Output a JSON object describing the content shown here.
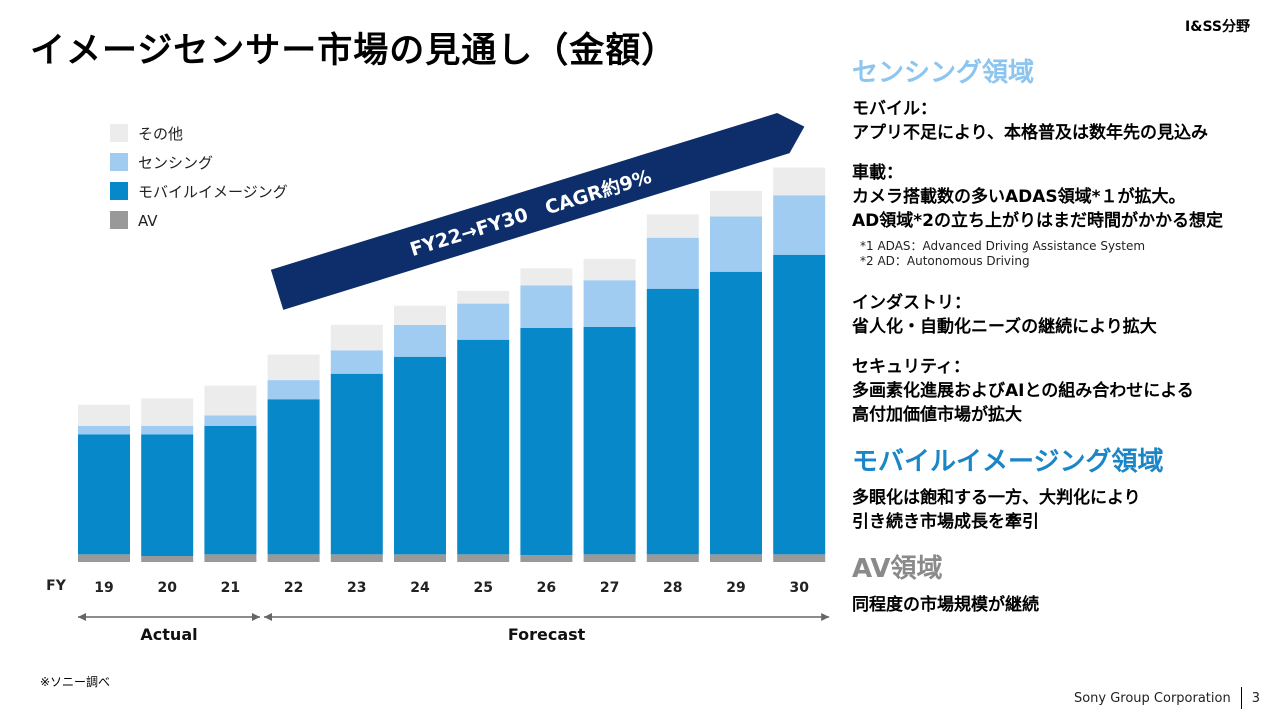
{
  "header": {
    "title": "イメージセンサー市場の見通し（金額）",
    "division": "I&SS分野"
  },
  "chart_data": {
    "type": "bar",
    "stacked": true,
    "categories": [
      "19",
      "20",
      "21",
      "22",
      "23",
      "24",
      "25",
      "26",
      "27",
      "28",
      "29",
      "30"
    ],
    "x_axis_label": "FY",
    "series": [
      {
        "name": "AV",
        "color": "#999999",
        "values": [
          1.8,
          1.4,
          1.8,
          1.8,
          1.8,
          1.8,
          1.8,
          1.6,
          1.8,
          1.8,
          1.8,
          1.8
        ]
      },
      {
        "name": "モバイルイメージング",
        "color": "#0788c9",
        "values": [
          28.2,
          28.6,
          30.2,
          36.5,
          42.5,
          46.5,
          50.5,
          53.5,
          53.5,
          62.5,
          66.5,
          70.5
        ]
      },
      {
        "name": "センシング",
        "color": "#a0ccf2",
        "values": [
          2,
          2,
          2.5,
          4.5,
          5.5,
          7.5,
          8.5,
          10,
          11,
          12,
          13,
          14
        ]
      },
      {
        "name": "その他",
        "color": "#ececec",
        "values": [
          5,
          6.5,
          7,
          6,
          6,
          4.5,
          3,
          4,
          5,
          5.5,
          6,
          6.5
        ]
      }
    ],
    "legend": [
      "その他",
      "センシング",
      "モバイルイメージング",
      "AV"
    ],
    "legend_position": "top-left",
    "ylim": [
      0,
      100
    ],
    "annotation": "FY22→FY30　CAGR約9%",
    "periods": [
      {
        "label": "Actual",
        "from": "19",
        "to": "21"
      },
      {
        "label": "Forecast",
        "from": "22",
        "to": "30"
      }
    ]
  },
  "sections": {
    "sensing": {
      "title": "センシング領域",
      "items": [
        {
          "lines": [
            "モバイル：",
            "アプリ不足により、本格普及は数年先の見込み"
          ]
        },
        {
          "lines": [
            "車載：",
            "カメラ搭載数の多いADAS領域*１が拡大。",
            "AD領域*2の立ち上がりはまだ時間がかかる想定"
          ],
          "notes": [
            "*1 ADAS：Advanced Driving Assistance System",
            "*2 AD：Autonomous Driving"
          ]
        },
        {
          "lines": [
            "インダストリ：",
            "省人化・自動化ニーズの継続により拡大"
          ]
        },
        {
          "lines": [
            "セキュリティ：",
            "多画素化進展およびAIとの組み合わせによる",
            "高付加価値市場が拡大"
          ]
        }
      ]
    },
    "mobile": {
      "title": "モバイルイメージング領域",
      "lines": [
        "多眼化は飽和する一方、大判化により",
        "引き続き市場成長を牽引"
      ]
    },
    "av": {
      "title": "AV領域",
      "lines": [
        "同程度の市場規模が継続"
      ]
    }
  },
  "source_note": "※ソニー調べ",
  "footer": {
    "company": "Sony Group Corporation",
    "page": "3"
  }
}
